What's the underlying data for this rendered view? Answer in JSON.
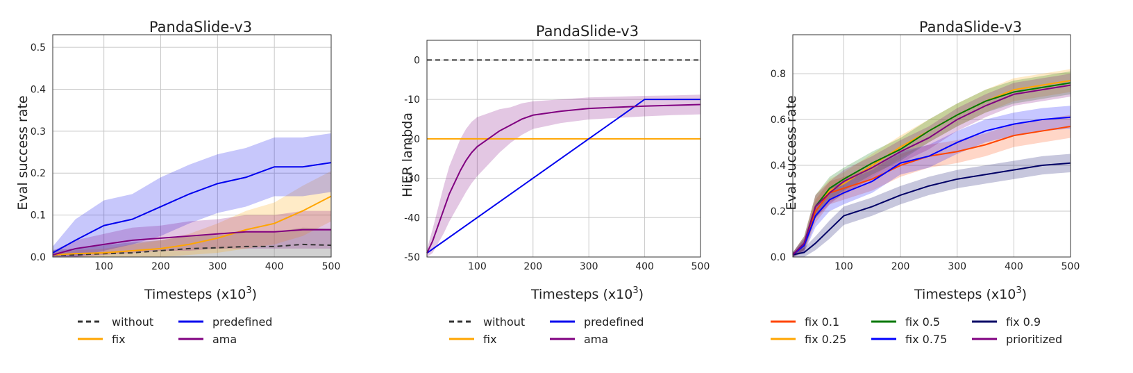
{
  "charts": [
    {
      "title": "PandaSlide-v3",
      "xlabel_base": "Timesteps (x10",
      "xlabel_exp": "3",
      "xlabel_close": ")",
      "ylabel": "Eval success rate"
    },
    {
      "title": "PandaSlide-v3",
      "xlabel_base": "Timesteps (x10",
      "xlabel_exp": "3",
      "xlabel_close": ")",
      "ylabel": "HiER lambda"
    },
    {
      "title": "PandaSlide-v3",
      "xlabel_base": "Timesteps (x10",
      "xlabel_exp": "3",
      "xlabel_close": ")",
      "ylabel": "Eval success rate"
    }
  ],
  "chart_data": [
    {
      "type": "line",
      "title": "PandaSlide-v3",
      "xlabel": "Timesteps (x10^3)",
      "ylabel": "Eval success rate",
      "xlim": [
        10,
        500
      ],
      "ylim": [
        0,
        0.53
      ],
      "xticks": [
        100,
        200,
        300,
        400,
        500
      ],
      "yticks": [
        0.0,
        0.1,
        0.2,
        0.3,
        0.4,
        0.5
      ],
      "grid": true,
      "series": [
        {
          "name": "without",
          "color": "#333333",
          "dash": "dashed",
          "band_color": "#999999",
          "x": [
            10,
            50,
            100,
            150,
            200,
            250,
            300,
            350,
            400,
            450,
            500
          ],
          "y": [
            0.005,
            0.005,
            0.008,
            0.01,
            0.015,
            0.02,
            0.022,
            0.025,
            0.025,
            0.03,
            0.028
          ],
          "band": [
            0.012,
            0.015,
            0.02,
            0.025,
            0.025,
            0.03,
            0.03,
            0.035,
            0.035,
            0.04,
            0.04
          ]
        },
        {
          "name": "fix",
          "color": "#ffa500",
          "dash": "solid",
          "x": [
            10,
            50,
            100,
            150,
            200,
            250,
            300,
            350,
            400,
            450,
            500
          ],
          "y": [
            0.005,
            0.008,
            0.01,
            0.015,
            0.02,
            0.03,
            0.045,
            0.065,
            0.08,
            0.11,
            0.145
          ],
          "band": [
            0.005,
            0.008,
            0.01,
            0.015,
            0.02,
            0.025,
            0.035,
            0.045,
            0.05,
            0.06,
            0.06
          ]
        },
        {
          "name": "predefined",
          "color": "#0000ee",
          "dash": "solid",
          "x": [
            10,
            50,
            100,
            150,
            200,
            250,
            300,
            350,
            400,
            450,
            500
          ],
          "y": [
            0.01,
            0.04,
            0.075,
            0.09,
            0.12,
            0.15,
            0.175,
            0.19,
            0.215,
            0.215,
            0.225
          ],
          "band": [
            0.015,
            0.05,
            0.06,
            0.06,
            0.07,
            0.07,
            0.07,
            0.07,
            0.07,
            0.07,
            0.07
          ]
        },
        {
          "name": "ama",
          "color": "#800080",
          "dash": "solid",
          "x": [
            10,
            50,
            100,
            150,
            200,
            250,
            300,
            350,
            400,
            450,
            500
          ],
          "y": [
            0.005,
            0.02,
            0.03,
            0.04,
            0.045,
            0.05,
            0.055,
            0.06,
            0.06,
            0.065,
            0.065
          ],
          "band": [
            0.01,
            0.02,
            0.025,
            0.03,
            0.03,
            0.035,
            0.035,
            0.04,
            0.04,
            0.045,
            0.045
          ]
        }
      ],
      "legend": {
        "columns": 2,
        "items": [
          "without",
          "fix",
          "predefined",
          "ama"
        ]
      }
    },
    {
      "type": "line",
      "title": "PandaSlide-v3",
      "xlabel": "Timesteps (x10^3)",
      "ylabel": "HiER lambda",
      "xlim": [
        10,
        500
      ],
      "ylim": [
        -50,
        5
      ],
      "xticks": [
        100,
        200,
        300,
        400,
        500
      ],
      "yticks": [
        0,
        -10,
        -20,
        -30,
        -40,
        -50
      ],
      "grid": true,
      "series": [
        {
          "name": "without",
          "color": "#333333",
          "dash": "dashed",
          "x": [
            10,
            500
          ],
          "y": [
            0,
            0
          ],
          "band": [
            0,
            0
          ]
        },
        {
          "name": "fix",
          "color": "#ffa500",
          "dash": "solid",
          "x": [
            10,
            500
          ],
          "y": [
            -20,
            -20
          ],
          "band": [
            0,
            0
          ]
        },
        {
          "name": "predefined",
          "color": "#0000ee",
          "dash": "solid",
          "x": [
            10,
            400,
            500
          ],
          "y": [
            -49,
            -10,
            -10
          ],
          "band": [
            0,
            0,
            0
          ]
        },
        {
          "name": "ama",
          "color": "#800080",
          "dash": "solid",
          "x": [
            10,
            20,
            30,
            40,
            50,
            60,
            70,
            80,
            90,
            100,
            120,
            140,
            160,
            180,
            200,
            250,
            300,
            350,
            400,
            450,
            500
          ],
          "y": [
            -49,
            -46,
            -42,
            -38,
            -34,
            -31,
            -28,
            -25.5,
            -23.5,
            -22,
            -20,
            -18,
            -16.5,
            -15,
            -14,
            -13,
            -12.3,
            -12,
            -11.7,
            -11.5,
            -11.3
          ],
          "band": [
            1,
            3,
            4.5,
            6,
            7,
            7.5,
            8,
            8,
            7.8,
            7.5,
            6.5,
            5.5,
            4.5,
            4,
            3.5,
            3,
            2.8,
            2.7,
            2.6,
            2.5,
            2.5
          ]
        }
      ],
      "legend": {
        "columns": 2,
        "items": [
          "without",
          "fix",
          "predefined",
          "ama"
        ]
      }
    },
    {
      "type": "line",
      "title": "PandaSlide-v3",
      "xlabel": "Timesteps (x10^3)",
      "ylabel": "Eval success rate",
      "xlim": [
        10,
        500
      ],
      "ylim": [
        0,
        0.97
      ],
      "xticks": [
        100,
        200,
        300,
        400,
        500
      ],
      "yticks": [
        0.0,
        0.2,
        0.4,
        0.6,
        0.8
      ],
      "grid": true,
      "series": [
        {
          "name": "fix 0.1",
          "color": "#ff4500",
          "dash": "solid",
          "x": [
            10,
            30,
            50,
            75,
            100,
            150,
            200,
            250,
            300,
            350,
            400,
            450,
            500
          ],
          "y": [
            0.01,
            0.05,
            0.2,
            0.28,
            0.3,
            0.34,
            0.4,
            0.44,
            0.46,
            0.49,
            0.53,
            0.55,
            0.57
          ],
          "band": [
            0.01,
            0.03,
            0.05,
            0.05,
            0.05,
            0.05,
            0.05,
            0.05,
            0.05,
            0.05,
            0.05,
            0.05,
            0.05
          ]
        },
        {
          "name": "fix 0.25",
          "color": "#ffa500",
          "dash": "solid",
          "x": [
            10,
            30,
            50,
            75,
            100,
            150,
            200,
            250,
            300,
            350,
            400,
            450,
            500
          ],
          "y": [
            0.01,
            0.06,
            0.22,
            0.29,
            0.32,
            0.4,
            0.48,
            0.55,
            0.62,
            0.68,
            0.73,
            0.75,
            0.77
          ],
          "band": [
            0.01,
            0.03,
            0.05,
            0.05,
            0.05,
            0.05,
            0.05,
            0.05,
            0.05,
            0.05,
            0.05,
            0.05,
            0.05
          ]
        },
        {
          "name": "fix 0.5",
          "color": "#007800",
          "dash": "solid",
          "x": [
            10,
            30,
            50,
            75,
            100,
            150,
            200,
            250,
            300,
            350,
            400,
            450,
            500
          ],
          "y": [
            0.01,
            0.06,
            0.22,
            0.3,
            0.34,
            0.41,
            0.47,
            0.55,
            0.62,
            0.68,
            0.72,
            0.74,
            0.76
          ],
          "band": [
            0.01,
            0.03,
            0.05,
            0.05,
            0.05,
            0.05,
            0.05,
            0.05,
            0.05,
            0.05,
            0.05,
            0.05,
            0.05
          ]
        },
        {
          "name": "fix 0.75",
          "color": "#0000ff",
          "dash": "solid",
          "x": [
            10,
            30,
            50,
            75,
            100,
            150,
            200,
            250,
            300,
            350,
            400,
            450,
            500
          ],
          "y": [
            0.01,
            0.05,
            0.18,
            0.25,
            0.28,
            0.33,
            0.41,
            0.44,
            0.5,
            0.55,
            0.58,
            0.6,
            0.61
          ],
          "band": [
            0.01,
            0.03,
            0.05,
            0.05,
            0.05,
            0.05,
            0.05,
            0.05,
            0.05,
            0.05,
            0.05,
            0.05,
            0.05
          ]
        },
        {
          "name": "fix 0.9",
          "color": "#000066",
          "dash": "solid",
          "x": [
            10,
            30,
            50,
            75,
            100,
            150,
            200,
            250,
            300,
            350,
            400,
            450,
            500
          ],
          "y": [
            0.01,
            0.02,
            0.06,
            0.12,
            0.18,
            0.22,
            0.27,
            0.31,
            0.34,
            0.36,
            0.38,
            0.4,
            0.41
          ],
          "band": [
            0.01,
            0.02,
            0.03,
            0.04,
            0.04,
            0.04,
            0.04,
            0.04,
            0.04,
            0.04,
            0.04,
            0.04,
            0.04
          ]
        },
        {
          "name": "prioritized",
          "color": "#800080",
          "dash": "solid",
          "x": [
            10,
            30,
            50,
            75,
            100,
            150,
            200,
            250,
            300,
            350,
            400,
            450,
            500
          ],
          "y": [
            0.01,
            0.06,
            0.22,
            0.28,
            0.33,
            0.39,
            0.46,
            0.52,
            0.6,
            0.66,
            0.71,
            0.73,
            0.75
          ],
          "band": [
            0.01,
            0.03,
            0.05,
            0.05,
            0.05,
            0.05,
            0.05,
            0.05,
            0.05,
            0.05,
            0.05,
            0.05,
            0.05
          ]
        }
      ],
      "legend": {
        "columns": 3,
        "items": [
          "fix 0.1",
          "fix 0.25",
          "fix 0.5",
          "fix 0.75",
          "fix 0.9",
          "prioritized"
        ]
      }
    }
  ]
}
